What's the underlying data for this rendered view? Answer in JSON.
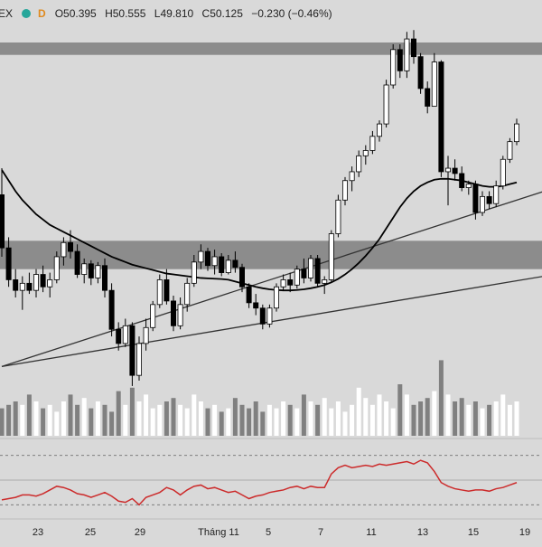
{
  "header": {
    "symbol_fragment": "EX",
    "interval": "D",
    "open_label": "O",
    "open": "50.395",
    "high_label": "H",
    "high": "50.555",
    "low_label": "L",
    "low": "49.810",
    "close_label": "C",
    "close": "50.125",
    "change": "−0.230 (−0.46%)"
  },
  "colors": {
    "background": "#d9d9d9",
    "up_candle": "#ffffff",
    "down_candle": "#000000",
    "zone": "#8c8c8c",
    "ma_line": "#000000",
    "trendline": "#333333",
    "volume_up": "#ffffff",
    "volume_down": "#808080",
    "oscillator": "#cc2b2b",
    "accent_dot": "#26a69a",
    "interval_badge": "#e08a1e"
  },
  "chart_data": [
    {
      "type": "candlestick",
      "x_tick_labels": [
        "23",
        "25",
        "29",
        "Tháng 11",
        "5",
        "7",
        "11",
        "13",
        "15",
        "19"
      ],
      "candles": [
        [
          53.0,
          54.5,
          49.5,
          50.0
        ],
        [
          50.0,
          50.6,
          47.8,
          48.2
        ],
        [
          48.2,
          48.8,
          47.2,
          47.6
        ],
        [
          47.6,
          48.4,
          46.5,
          48.0
        ],
        [
          48.0,
          48.6,
          47.4,
          47.6
        ],
        [
          47.6,
          48.8,
          47.2,
          48.5
        ],
        [
          48.5,
          49.0,
          47.5,
          47.8
        ],
        [
          47.8,
          48.6,
          47.2,
          48.2
        ],
        [
          48.2,
          49.8,
          48.0,
          49.5
        ],
        [
          49.5,
          50.6,
          49.0,
          50.3
        ],
        [
          50.3,
          51.0,
          49.4,
          49.8
        ],
        [
          49.8,
          50.2,
          48.3,
          48.5
        ],
        [
          48.5,
          49.4,
          48.0,
          49.1
        ],
        [
          49.1,
          49.3,
          47.9,
          48.3
        ],
        [
          48.3,
          49.2,
          48.0,
          49.0
        ],
        [
          49.0,
          49.4,
          47.2,
          47.6
        ],
        [
          47.6,
          48.0,
          45.0,
          45.4
        ],
        [
          45.4,
          45.8,
          44.2,
          44.6
        ],
        [
          44.6,
          46.0,
          44.4,
          45.6
        ],
        [
          45.6,
          45.8,
          42.2,
          42.8
        ],
        [
          42.8,
          45.0,
          42.5,
          44.6
        ],
        [
          44.6,
          46.0,
          44.2,
          45.5
        ],
        [
          45.5,
          47.0,
          45.3,
          46.8
        ],
        [
          46.8,
          48.5,
          46.6,
          48.2
        ],
        [
          48.2,
          48.8,
          46.8,
          47.0
        ],
        [
          47.0,
          47.3,
          45.3,
          45.6
        ],
        [
          45.6,
          47.2,
          45.4,
          46.8
        ],
        [
          46.8,
          48.3,
          46.4,
          48.0
        ],
        [
          48.0,
          49.6,
          47.8,
          49.2
        ],
        [
          49.2,
          50.2,
          48.8,
          49.8
        ],
        [
          49.8,
          50.0,
          48.7,
          49.0
        ],
        [
          49.0,
          49.9,
          48.5,
          49.5
        ],
        [
          49.5,
          49.7,
          48.4,
          48.6
        ],
        [
          48.6,
          49.6,
          48.5,
          49.3
        ],
        [
          49.3,
          49.8,
          48.6,
          48.9
        ],
        [
          48.9,
          49.1,
          47.5,
          47.8
        ],
        [
          47.8,
          48.0,
          46.6,
          46.9
        ],
        [
          46.9,
          47.4,
          46.2,
          46.6
        ],
        [
          46.6,
          46.8,
          45.4,
          45.7
        ],
        [
          45.7,
          46.8,
          45.5,
          46.6
        ],
        [
          46.6,
          48.0,
          46.4,
          47.8
        ],
        [
          47.8,
          48.5,
          47.6,
          48.2
        ],
        [
          48.2,
          48.6,
          47.5,
          47.9
        ],
        [
          47.9,
          49.0,
          47.7,
          48.8
        ],
        [
          48.8,
          49.4,
          48.0,
          48.3
        ],
        [
          48.3,
          49.6,
          48.1,
          49.4
        ],
        [
          49.4,
          49.6,
          47.8,
          48.0
        ],
        [
          48.0,
          48.4,
          47.4,
          48.2
        ],
        [
          48.2,
          51.0,
          48.1,
          50.8
        ],
        [
          50.8,
          53.0,
          50.6,
          52.7
        ],
        [
          52.7,
          54.0,
          52.4,
          53.8
        ],
        [
          53.8,
          54.6,
          53.2,
          54.3
        ],
        [
          54.3,
          55.5,
          54.0,
          55.2
        ],
        [
          55.2,
          55.8,
          54.7,
          55.5
        ],
        [
          55.5,
          56.6,
          55.3,
          56.3
        ],
        [
          56.3,
          57.2,
          56.0,
          57.0
        ],
        [
          57.0,
          59.5,
          56.8,
          59.2
        ],
        [
          59.2,
          61.5,
          59.0,
          61.2
        ],
        [
          61.2,
          61.5,
          59.6,
          60.0
        ],
        [
          60.0,
          62.2,
          59.6,
          61.8
        ],
        [
          61.8,
          62.3,
          60.4,
          60.8
        ],
        [
          60.8,
          61.0,
          58.7,
          59.0
        ],
        [
          59.0,
          59.4,
          57.6,
          58.0
        ],
        [
          58.0,
          61.0,
          58.0,
          60.5
        ],
        [
          60.5,
          60.6,
          54.0,
          54.3
        ],
        [
          54.3,
          55.2,
          52.4,
          54.5
        ],
        [
          54.5,
          55.0,
          53.8,
          54.2
        ],
        [
          54.2,
          54.6,
          53.2,
          53.4
        ],
        [
          53.4,
          53.8,
          53.0,
          53.6
        ],
        [
          53.6,
          53.8,
          51.6,
          52.0
        ],
        [
          52.0,
          53.2,
          51.8,
          52.9
        ],
        [
          52.9,
          53.2,
          52.2,
          52.5
        ],
        [
          52.5,
          53.8,
          52.3,
          53.5
        ],
        [
          53.5,
          55.2,
          53.3,
          55.0
        ],
        [
          55.0,
          56.2,
          54.8,
          56.0
        ],
        [
          56.0,
          57.3,
          55.8,
          57.0
        ]
      ],
      "moving_average": [
        54.4,
        53.8,
        53.2,
        52.7,
        52.3,
        51.9,
        51.6,
        51.3,
        51.1,
        50.9,
        50.7,
        50.5,
        50.3,
        50.1,
        49.9,
        49.7,
        49.5,
        49.35,
        49.2,
        49.05,
        48.95,
        48.85,
        48.75,
        48.65,
        48.55,
        48.5,
        48.45,
        48.4,
        48.35,
        48.3,
        48.28,
        48.26,
        48.24,
        48.2,
        48.1,
        48.0,
        47.9,
        47.8,
        47.72,
        47.66,
        47.62,
        47.6,
        47.6,
        47.62,
        47.66,
        47.72,
        47.8,
        47.9,
        48.05,
        48.25,
        48.5,
        48.8,
        49.15,
        49.55,
        50.0,
        50.5,
        51.1,
        51.7,
        52.3,
        52.8,
        53.2,
        53.5,
        53.7,
        53.85,
        53.9,
        53.9,
        53.85,
        53.8,
        53.7,
        53.6,
        53.5,
        53.45,
        53.45,
        53.5,
        53.6,
        53.7
      ],
      "horizontal_zones": [
        [
          60.9,
          61.6
        ],
        [
          48.8,
          50.4
        ]
      ],
      "trendlines": [
        [
          [
            0,
            43.3
          ],
          [
            79,
            53.2
          ]
        ],
        [
          [
            0,
            43.3
          ],
          [
            79,
            48.4
          ]
        ]
      ],
      "volume": [
        8,
        9,
        10,
        9,
        12,
        10,
        8,
        9,
        7,
        10,
        12,
        9,
        11,
        8,
        10,
        9,
        7,
        13,
        9,
        14,
        10,
        12,
        8,
        9,
        10,
        11,
        9,
        8,
        12,
        10,
        8,
        9,
        7,
        8,
        11,
        9,
        8,
        10,
        7,
        9,
        8,
        10,
        9,
        8,
        12,
        10,
        9,
        11,
        8,
        10,
        7,
        9,
        14,
        11,
        9,
        12,
        10,
        8,
        15,
        12,
        9,
        10,
        11,
        13,
        22,
        12,
        10,
        11,
        9,
        10,
        8,
        9,
        10,
        12,
        9,
        10
      ],
      "oscillator": [
        34,
        35,
        36,
        38,
        38,
        37,
        39,
        42,
        45,
        44,
        42,
        39,
        38,
        36,
        38,
        40,
        37,
        33,
        32,
        35,
        30,
        36,
        38,
        40,
        44,
        42,
        38,
        42,
        45,
        46,
        43,
        44,
        42,
        40,
        41,
        38,
        35,
        37,
        38,
        40,
        41,
        42,
        44,
        45,
        43,
        45,
        44,
        44,
        55,
        60,
        62,
        60,
        61,
        62,
        61,
        63,
        62,
        63,
        64,
        65,
        63,
        66,
        64,
        57,
        48,
        45,
        43,
        42,
        41,
        42,
        42,
        41,
        43,
        44,
        46,
        48
      ]
    }
  ]
}
